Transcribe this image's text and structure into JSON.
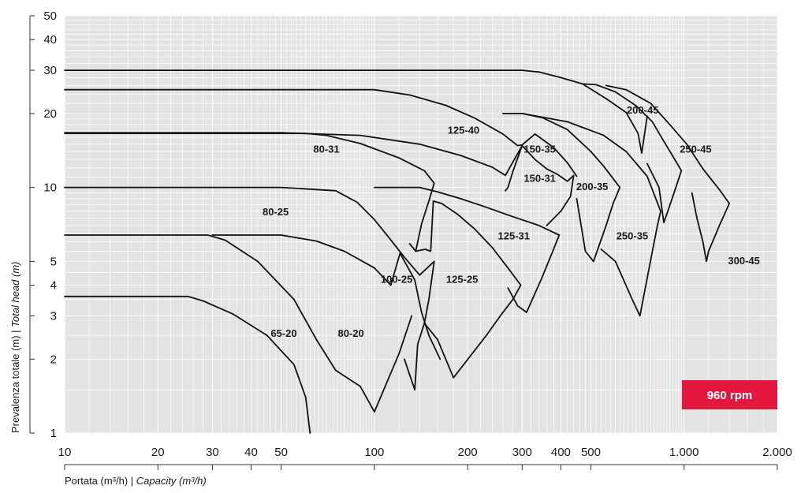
{
  "chart_data": {
    "type": "line",
    "xscale": "log",
    "yscale": "log",
    "xlim": [
      10,
      2000
    ],
    "ylim": [
      1,
      50
    ],
    "grid": true,
    "x_ticks": [
      {
        "v": 10,
        "label": "10"
      },
      {
        "v": 20,
        "label": "20"
      },
      {
        "v": 30,
        "label": "30"
      },
      {
        "v": 40,
        "label": "40"
      },
      {
        "v": 50,
        "label": "50"
      },
      {
        "v": 100,
        "label": "100"
      },
      {
        "v": 200,
        "label": "200"
      },
      {
        "v": 300,
        "label": "300"
      },
      {
        "v": 400,
        "label": "400"
      },
      {
        "v": 500,
        "label": "500"
      },
      {
        "v": 1000,
        "label": "1.000"
      },
      {
        "v": 2000,
        "label": "2.000"
      }
    ],
    "y_ticks": [
      {
        "v": 1,
        "label": "1"
      },
      {
        "v": 2,
        "label": "2"
      },
      {
        "v": 3,
        "label": "3"
      },
      {
        "v": 4,
        "label": "4"
      },
      {
        "v": 5,
        "label": "5"
      },
      {
        "v": 10,
        "label": "10"
      },
      {
        "v": 20,
        "label": "20"
      },
      {
        "v": 30,
        "label": "30"
      },
      {
        "v": 40,
        "label": "40"
      },
      {
        "v": 50,
        "label": "50"
      }
    ],
    "xlabel": {
      "main": "Portata (m³/h) | ",
      "italic": "Capacity (m³/h)"
    },
    "ylabel": {
      "main": "Prevalenza totale (m) | ",
      "italic": "Total head (m)"
    },
    "badge": "960 rpm",
    "badge_color": "#e3173e",
    "line_color": "#111111",
    "curves": [
      {
        "name": "65-20",
        "points": [
          [
            10,
            3.6
          ],
          [
            25,
            3.6
          ],
          [
            28,
            3.45
          ],
          [
            35,
            3.05
          ],
          [
            45,
            2.5
          ],
          [
            55,
            1.9
          ],
          [
            60,
            1.4
          ],
          [
            62,
            1.0
          ]
        ]
      },
      {
        "name": "80-20",
        "points": [
          [
            10,
            6.4
          ],
          [
            29,
            6.4
          ],
          [
            33,
            6.1
          ],
          [
            42,
            5.0
          ],
          [
            55,
            3.5
          ],
          [
            65,
            2.4
          ],
          [
            75,
            1.8
          ],
          [
            90,
            1.55
          ],
          [
            100,
            1.22
          ],
          [
            120,
            2.1
          ],
          [
            132,
            3.0
          ]
        ]
      },
      {
        "name": "100-25",
        "points": [
          [
            30,
            6.4
          ],
          [
            40,
            6.4
          ],
          [
            50,
            6.4
          ],
          [
            65,
            6.05
          ],
          [
            80,
            5.5
          ],
          [
            100,
            4.7
          ],
          [
            113,
            4.0
          ],
          [
            121,
            5.4
          ],
          [
            135,
            4.2
          ],
          [
            142,
            3.1
          ],
          [
            150,
            2.5
          ],
          [
            163,
            2.0
          ]
        ]
      },
      {
        "name": "80-25",
        "points": [
          [
            10,
            10
          ],
          [
            50,
            10
          ],
          [
            75,
            9.7
          ],
          [
            88,
            8.7
          ],
          [
            100,
            7.4
          ],
          [
            112,
            6.2
          ],
          [
            125,
            5.2
          ],
          [
            140,
            4.4
          ],
          [
            156,
            5.0
          ],
          [
            150,
            3.5
          ],
          [
            145,
            2.8
          ],
          [
            138,
            2.3
          ],
          [
            135,
            1.5
          ],
          [
            125,
            2.0
          ]
        ]
      },
      {
        "name": "80-31",
        "points": [
          [
            10,
            16.6
          ],
          [
            60,
            16.6
          ],
          [
            70,
            16.3
          ],
          [
            90,
            15.1
          ],
          [
            120,
            13.2
          ],
          [
            145,
            11.7
          ],
          [
            156,
            10.4
          ],
          [
            150,
            8.8
          ],
          [
            142,
            7.1
          ],
          [
            136,
            5.5
          ],
          [
            130,
            5.9
          ]
        ]
      },
      {
        "name": "125-25",
        "points": [
          [
            136,
            5.5
          ],
          [
            146,
            5.6
          ],
          [
            152,
            5.5
          ],
          [
            155,
            8.8
          ],
          [
            165,
            8.6
          ],
          [
            185,
            7.8
          ],
          [
            210,
            6.8
          ],
          [
            240,
            5.7
          ],
          [
            270,
            4.7
          ],
          [
            297,
            4.0
          ],
          [
            280,
            3.5
          ],
          [
            255,
            3.0
          ],
          [
            230,
            2.5
          ],
          [
            180,
            1.68
          ],
          [
            160,
            2.4
          ],
          [
            145,
            2.8
          ]
        ]
      },
      {
        "name": "125-31",
        "points": [
          [
            100,
            10
          ],
          [
            140,
            10
          ],
          [
            160,
            9.6
          ],
          [
            190,
            9.0
          ],
          [
            230,
            8.3
          ],
          [
            280,
            7.6
          ],
          [
            340,
            7.0
          ],
          [
            395,
            6.4
          ],
          [
            370,
            5.2
          ],
          [
            345,
            4.2
          ],
          [
            310,
            3.1
          ],
          [
            290,
            3.3
          ],
          [
            270,
            3.9
          ]
        ]
      },
      {
        "name": "125-40",
        "points": [
          [
            10,
            16.7
          ],
          [
            50,
            16.7
          ],
          [
            90,
            16.3
          ],
          [
            140,
            15.0
          ],
          [
            190,
            13.5
          ],
          [
            240,
            12.1
          ],
          [
            265,
            11.2
          ],
          [
            300,
            14.8
          ],
          [
            280,
            11.6
          ],
          [
            270,
            10.0
          ],
          [
            265,
            9.7
          ]
        ]
      },
      {
        "name": "150-31",
        "points": [
          [
            300,
            14.8
          ],
          [
            330,
            13.0
          ],
          [
            360,
            11.9
          ],
          [
            390,
            11.3
          ],
          [
            420,
            10.6
          ],
          [
            440,
            11.2
          ],
          [
            430,
            9.2
          ],
          [
            400,
            8.0
          ],
          [
            360,
            7.0
          ]
        ]
      },
      {
        "name": "150-35",
        "points": [
          [
            10,
            25
          ],
          [
            100,
            25
          ],
          [
            130,
            23.8
          ],
          [
            170,
            21.6
          ],
          [
            210,
            19.2
          ],
          [
            260,
            16.5
          ],
          [
            290,
            14.8
          ],
          [
            300,
            14.9
          ],
          [
            330,
            16.5
          ],
          [
            380,
            14.5
          ],
          [
            420,
            12.6
          ],
          [
            450,
            11.1
          ]
        ]
      },
      {
        "name": "200-35",
        "points": [
          [
            260,
            20.0
          ],
          [
            300,
            20.0
          ],
          [
            350,
            19.2
          ],
          [
            420,
            17.2
          ],
          [
            500,
            14.0
          ],
          [
            550,
            12.2
          ],
          [
            620,
            10.0
          ],
          [
            590,
            8.6
          ],
          [
            560,
            7.0
          ],
          [
            510,
            5.0
          ],
          [
            480,
            5.5
          ],
          [
            450,
            9.0
          ]
        ]
      },
      {
        "name": "250-35",
        "points": [
          [
            300,
            20.0
          ],
          [
            420,
            18.5
          ],
          [
            550,
            16.3
          ],
          [
            650,
            14.0
          ],
          [
            760,
            11.1
          ],
          [
            840,
            8.0
          ],
          [
            820,
            7.0
          ],
          [
            790,
            5.5
          ],
          [
            720,
            3.0
          ],
          [
            680,
            3.5
          ],
          [
            600,
            5.0
          ],
          [
            540,
            5.6
          ]
        ]
      },
      {
        "name": "200-45",
        "points": [
          [
            10,
            30
          ],
          [
            300,
            30
          ],
          [
            340,
            29.5
          ],
          [
            400,
            28.0
          ],
          [
            470,
            26.4
          ],
          [
            560,
            23.0
          ],
          [
            650,
            20.2
          ],
          [
            710,
            16.6
          ],
          [
            730,
            13.8
          ],
          [
            760,
            19.5
          ]
        ]
      },
      {
        "name": "250-45",
        "points": [
          [
            470,
            26.4
          ],
          [
            520,
            26.2
          ],
          [
            600,
            24.5
          ],
          [
            700,
            21.5
          ],
          [
            790,
            18.5
          ],
          [
            850,
            15.8
          ],
          [
            920,
            13.4
          ],
          [
            980,
            11.7
          ],
          [
            930,
            9.6
          ],
          [
            880,
            7.8
          ],
          [
            860,
            7.2
          ],
          [
            830,
            10.0
          ],
          [
            760,
            12.5
          ]
        ]
      },
      {
        "name": "300-45",
        "points": [
          [
            560,
            26.0
          ],
          [
            650,
            25.0
          ],
          [
            780,
            22.0
          ],
          [
            900,
            18.0
          ],
          [
            1020,
            15.0
          ],
          [
            1150,
            11.9
          ],
          [
            1300,
            9.8
          ],
          [
            1400,
            8.6
          ],
          [
            1300,
            7.0
          ],
          [
            1200,
            5.5
          ],
          [
            1180,
            5.0
          ],
          [
            1150,
            6.0
          ],
          [
            1100,
            7.5
          ],
          [
            1060,
            9.5
          ]
        ]
      }
    ],
    "labels": [
      {
        "text": "65-20",
        "x": 51,
        "y": 2.53
      },
      {
        "text": "80-20",
        "x": 84,
        "y": 2.53
      },
      {
        "text": "100-25",
        "x": 118,
        "y": 4.2
      },
      {
        "text": "125-25",
        "x": 192,
        "y": 4.2
      },
      {
        "text": "80-25",
        "x": 48,
        "y": 7.9
      },
      {
        "text": "80-31",
        "x": 70,
        "y": 14.2
      },
      {
        "text": "125-31",
        "x": 282,
        "y": 6.3
      },
      {
        "text": "125-40",
        "x": 194,
        "y": 17.0
      },
      {
        "text": "150-35",
        "x": 342,
        "y": 14.2
      },
      {
        "text": "150-31",
        "x": 342,
        "y": 10.8
      },
      {
        "text": "200-35",
        "x": 505,
        "y": 10.0
      },
      {
        "text": "250-35",
        "x": 680,
        "y": 6.3
      },
      {
        "text": "200-45",
        "x": 735,
        "y": 20.5
      },
      {
        "text": "250-45",
        "x": 1090,
        "y": 14.2
      },
      {
        "text": "300-45",
        "x": 1560,
        "y": 5.0
      }
    ]
  }
}
